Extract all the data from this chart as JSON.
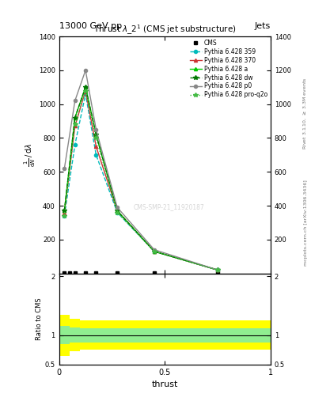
{
  "title": "13000 GeV pp",
  "title_right": "Jets",
  "plot_title": "Thrust $\\lambda\\_2^1$ (CMS jet substructure)",
  "xlabel": "thrust",
  "ylabel_ratio": "Ratio to CMS",
  "right_label_top": "Rivet 3.1.10, $\\geq$ 3.3M events",
  "right_label_bottom": "mcplots.cern.ch [arXiv:1306.3436]",
  "watermark": "CMS-SMP-21_11920187",
  "series": [
    {
      "label": "CMS",
      "color": "black",
      "marker": "s",
      "markersize": 3,
      "linestyle": "none",
      "x": [
        0.025,
        0.05,
        0.075,
        0.125,
        0.175,
        0.275,
        0.45,
        0.75
      ],
      "y": [
        2,
        2,
        2,
        2,
        2,
        2,
        2,
        2
      ]
    },
    {
      "label": "Pythia 6.428 359",
      "color": "#00BBBB",
      "marker": "o",
      "markersize": 3,
      "linestyle": "--",
      "x": [
        0.025,
        0.075,
        0.125,
        0.175,
        0.275,
        0.45,
        0.75
      ],
      "y": [
        340,
        760,
        1060,
        700,
        360,
        130,
        20
      ]
    },
    {
      "label": "Pythia 6.428 370",
      "color": "#CC3333",
      "marker": "^",
      "markersize": 3,
      "linestyle": "-",
      "x": [
        0.025,
        0.075,
        0.125,
        0.175,
        0.275,
        0.45,
        0.75
      ],
      "y": [
        360,
        870,
        1080,
        750,
        370,
        130,
        20
      ]
    },
    {
      "label": "Pythia 6.428 a",
      "color": "#00CC00",
      "marker": "^",
      "markersize": 3,
      "linestyle": "-",
      "x": [
        0.025,
        0.075,
        0.125,
        0.175,
        0.275,
        0.45,
        0.75
      ],
      "y": [
        370,
        920,
        1100,
        820,
        370,
        130,
        20
      ]
    },
    {
      "label": "Pythia 6.428 dw",
      "color": "#007700",
      "marker": "*",
      "markersize": 4,
      "linestyle": "--",
      "x": [
        0.025,
        0.075,
        0.125,
        0.175,
        0.275,
        0.45,
        0.75
      ],
      "y": [
        370,
        920,
        1100,
        820,
        370,
        130,
        20
      ]
    },
    {
      "label": "Pythia 6.428 p0",
      "color": "#888888",
      "marker": "o",
      "markersize": 3,
      "linestyle": "-",
      "x": [
        0.025,
        0.075,
        0.125,
        0.175,
        0.275,
        0.45,
        0.75
      ],
      "y": [
        620,
        1020,
        1200,
        850,
        390,
        140,
        20
      ]
    },
    {
      "label": "Pythia 6.428 pro-q2o",
      "color": "#44BB44",
      "marker": "*",
      "markersize": 4,
      "linestyle": ":",
      "x": [
        0.025,
        0.075,
        0.125,
        0.175,
        0.275,
        0.45,
        0.75
      ],
      "y": [
        340,
        880,
        1080,
        800,
        360,
        130,
        20
      ]
    }
  ],
  "ratio_yellow_upper": [
    1.35,
    1.28,
    1.25,
    1.25,
    1.25,
    1.25,
    1.25,
    1.25,
    1.25,
    1.25,
    1.25,
    1.25,
    1.25,
    1.25,
    1.25,
    1.25,
    1.25,
    1.25,
    1.25,
    1.25
  ],
  "ratio_yellow_lower": [
    0.65,
    0.72,
    0.75,
    0.75,
    0.75,
    0.75,
    0.75,
    0.75,
    0.75,
    0.75,
    0.75,
    0.75,
    0.75,
    0.75,
    0.75,
    0.75,
    0.75,
    0.75,
    0.75,
    0.75
  ],
  "ratio_green_upper": [
    1.15,
    1.13,
    1.12,
    1.12,
    1.12,
    1.12,
    1.12,
    1.12,
    1.12,
    1.12,
    1.12,
    1.12,
    1.12,
    1.12,
    1.12,
    1.12,
    1.12,
    1.12,
    1.12,
    1.12
  ],
  "ratio_green_lower": [
    0.85,
    0.87,
    0.88,
    0.88,
    0.88,
    0.88,
    0.88,
    0.88,
    0.88,
    0.88,
    0.88,
    0.88,
    0.88,
    0.88,
    0.88,
    0.88,
    0.88,
    0.88,
    0.88,
    0.88
  ],
  "ratio_x_edges": [
    0.0,
    0.05,
    0.1,
    0.15,
    0.2,
    0.25,
    0.3,
    0.35,
    0.4,
    0.45,
    0.5,
    0.55,
    0.6,
    0.65,
    0.7,
    0.75,
    0.8,
    0.85,
    0.9,
    0.95,
    1.0
  ],
  "ylim_main": [
    0,
    1400
  ],
  "ylim_ratio": [
    0.5,
    2.05
  ],
  "xlim": [
    0.0,
    1.0
  ],
  "background_color": "#ffffff",
  "yticks_main": [
    200,
    400,
    600,
    800,
    1000,
    1200,
    1400
  ],
  "yticks_ratio": [
    0.5,
    1.0,
    2.0
  ],
  "xticks": [
    0.0,
    0.5,
    1.0
  ]
}
